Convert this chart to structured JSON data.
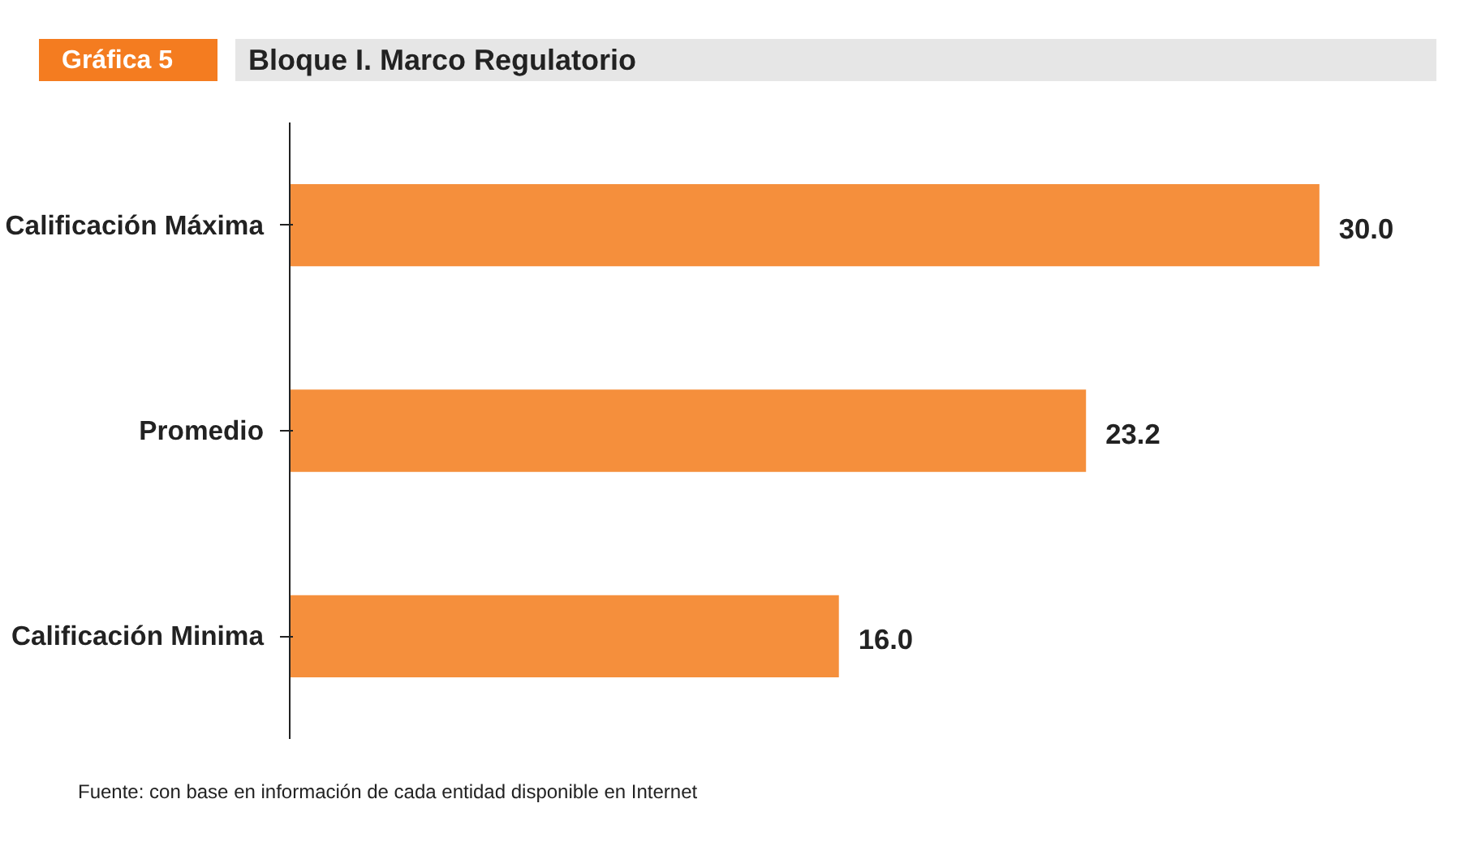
{
  "chart_data": {
    "type": "bar",
    "orientation": "horizontal",
    "subtitle": "Gráfica 5",
    "title": "Bloque I. Marco Regulatorio",
    "categories": [
      "Calificación Máxima",
      "Promedio",
      "Calificación Minima"
    ],
    "values": [
      30.0,
      23.2,
      16.0
    ],
    "value_labels": [
      "30.0",
      "23.2",
      "16.0"
    ],
    "color": "#f58f3c",
    "grid": false,
    "annotations": [
      "Fuente: con base en información de cada entidad disponible en Internet"
    ]
  }
}
